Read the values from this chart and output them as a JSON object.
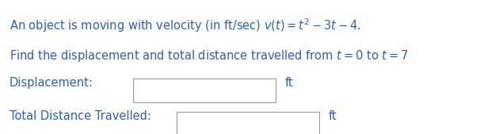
{
  "line1_plain": "An object is moving with velocity (in ft/sec) ",
  "line1_math": "$v(t) = t^2 - 3t - 4.$",
  "line2_plain": "Find the displacement and total distance travelled from ",
  "line2_math": "$t = 0$ to $t = 7$",
  "label1": "Displacement:",
  "label2": "Total Distance Travelled:",
  "unit": "ft",
  "text_color": "#3060b0",
  "bg_color": "#ffffff",
  "font_size": 10.5,
  "fig_width": 6.35,
  "fig_height": 1.69
}
